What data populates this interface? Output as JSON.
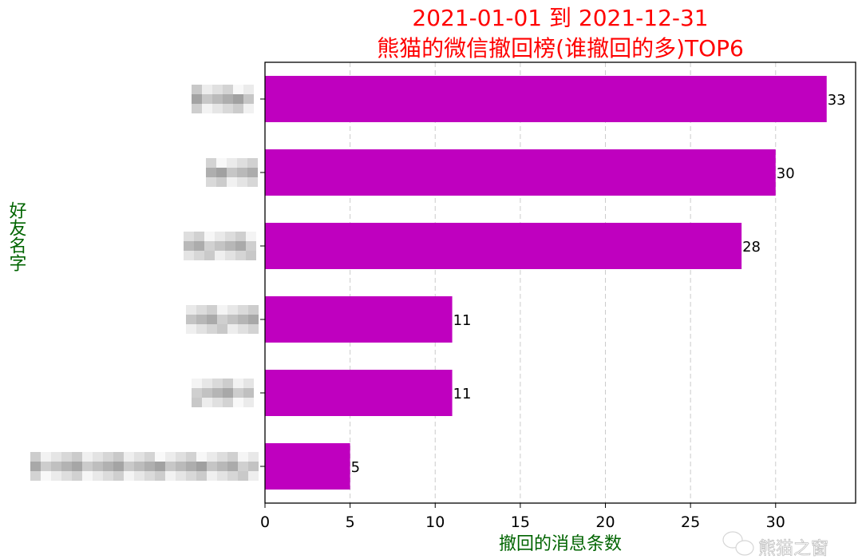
{
  "chart_data": {
    "type": "bar",
    "orientation": "horizontal",
    "title": [
      "2021-01-01 到 2021-12-31",
      "熊猫的微信撤回榜(谁撤回的多)TOP6"
    ],
    "xlabel": "撤回的消息条数",
    "ylabel": "好友名字",
    "categories": [
      "",
      "",
      "",
      "",
      "",
      ""
    ],
    "categories_note_visible": "names pixelated",
    "values": [
      33,
      30,
      28,
      11,
      11,
      5
    ],
    "data_labels": [
      "33",
      "30",
      "28",
      "11",
      "11",
      "5"
    ],
    "xlim": [
      0,
      34.7
    ],
    "xticks": [
      0,
      5,
      10,
      15,
      20,
      25,
      30
    ],
    "xtick_labels": [
      "0",
      "5",
      "10",
      "15",
      "20",
      "25",
      "30"
    ],
    "grid": "x dashed",
    "colors": {
      "bar": "#bf00bf",
      "title": "#ff0000",
      "axis_label": "#006400"
    }
  },
  "watermark": {
    "text": "熊猫之窗",
    "icon": "wechat-icon"
  }
}
